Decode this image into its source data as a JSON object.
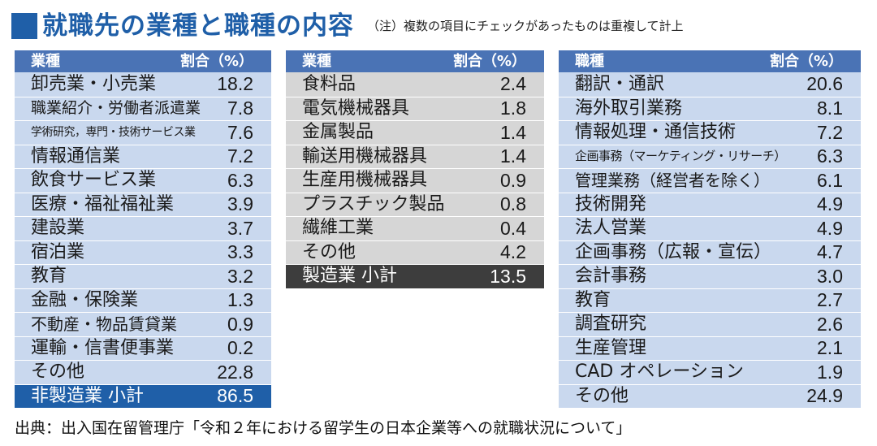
{
  "title": {
    "text": "就職先の業種と職種の内容",
    "note": "（注）複数の項目にチェックがあったものは重複して計上"
  },
  "table1": {
    "header": {
      "label": "業種",
      "value": "割合（%）"
    },
    "rows": [
      {
        "label": "卸売業・小売業",
        "value": "18.2"
      },
      {
        "label": "職業紹介・労働者派遣業",
        "value": "7.8"
      },
      {
        "label": "学術研究，専門・技術サービス業",
        "value": "7.6"
      },
      {
        "label": "情報通信業",
        "value": "7.2"
      },
      {
        "label": "飲食サービス業",
        "value": "6.3"
      },
      {
        "label": "医療・福祉福祉業",
        "value": "3.9"
      },
      {
        "label": "建設業",
        "value": "3.7"
      },
      {
        "label": "宿泊業",
        "value": "3.3"
      },
      {
        "label": "教育",
        "value": "3.2"
      },
      {
        "label": "金融・保険業",
        "value": "1.3"
      },
      {
        "label": "不動産・物品賃貸業",
        "value": "0.9"
      },
      {
        "label": "運輸・信書便事業",
        "value": "0.2"
      },
      {
        "label": "その他",
        "value": "22.8"
      }
    ],
    "total": {
      "label": "非製造業 小計",
      "value": "86.5"
    }
  },
  "table2": {
    "header": {
      "label": "業種",
      "value": "割合（%）"
    },
    "rows": [
      {
        "label": "食料品",
        "value": "2.4"
      },
      {
        "label": "電気機械器具",
        "value": "1.8"
      },
      {
        "label": "金属製品",
        "value": "1.4"
      },
      {
        "label": "輸送用機械器具",
        "value": "1.4"
      },
      {
        "label": "生産用機械器具",
        "value": "0.9"
      },
      {
        "label": "プラスチック製品",
        "value": "0.8"
      },
      {
        "label": "繊維工業",
        "value": "0.4"
      },
      {
        "label": "その他",
        "value": "4.2"
      }
    ],
    "total": {
      "label": "製造業 小計",
      "value": "13.5"
    }
  },
  "table3": {
    "header": {
      "label": "職種",
      "value": "割合（%）"
    },
    "rows": [
      {
        "label": "翻訳・通訳",
        "value": "20.6"
      },
      {
        "label": "海外取引業務",
        "value": "8.1"
      },
      {
        "label": "情報処理・通信技術",
        "value": "7.2"
      },
      {
        "label": "企画事務（マーケティング・リサーチ）",
        "value": "6.3"
      },
      {
        "label": "管理業務（経営者を除く）",
        "value": "6.1"
      },
      {
        "label": "技術開発",
        "value": "4.9"
      },
      {
        "label": "法人営業",
        "value": "4.9"
      },
      {
        "label": "企画事務（広報・宣伝）",
        "value": "4.7"
      },
      {
        "label": "会計事務",
        "value": "3.0"
      },
      {
        "label": "教育",
        "value": "2.7"
      },
      {
        "label": "調査研究",
        "value": "2.6"
      },
      {
        "label": "生産管理",
        "value": "2.1"
      },
      {
        "label": "CAD オペレーション",
        "value": "1.9"
      },
      {
        "label": "その他",
        "value": "24.9"
      }
    ]
  },
  "source": "出典：出入国在留管理庁「令和２年における留学生の日本企業等への就職状況について」",
  "colors": {
    "header_blue": "#4a73b5",
    "title_blue": "#1f5fa8",
    "row_light_blue": "#c9d8ee",
    "row_gray": "#d6d6d6",
    "total_dark": "#3d3d3d"
  }
}
